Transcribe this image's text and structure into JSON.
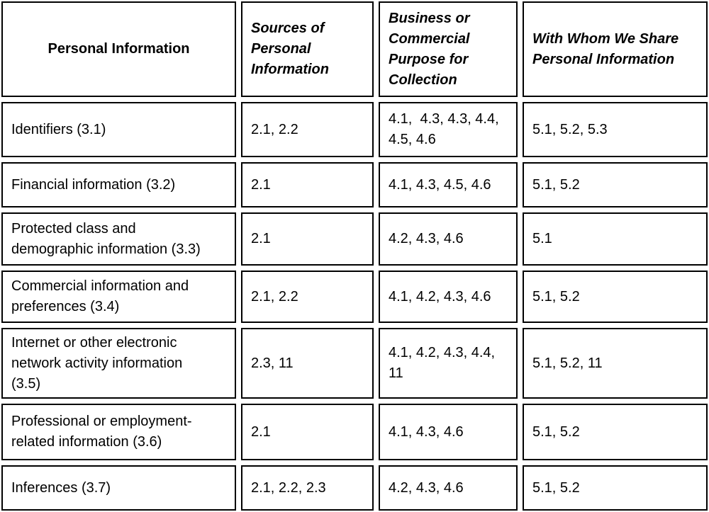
{
  "table": {
    "headers": [
      "Personal Information",
      "Sources of\nPersonal\nInformation",
      "Business or\nCommercial\nPurpose for\nCollection",
      "With Whom We Share\nPersonal Information"
    ],
    "rows": [
      {
        "category": "Identifiers (3.1)",
        "sources": "2.1, 2.2",
        "purpose": "4.1,  4.3, 4.3, 4.4,\n4.5, 4.6",
        "shared_with": "5.1, 5.2, 5.3"
      },
      {
        "category": "Financial information (3.2)",
        "sources": "2.1",
        "purpose": "4.1, 4.3, 4.5, 4.6",
        "shared_with": "5.1, 5.2"
      },
      {
        "category": "Protected class and\ndemographic information (3.3)",
        "sources": "2.1",
        "purpose": "4.2, 4.3, 4.6",
        "shared_with": "5.1"
      },
      {
        "category": "Commercial information and\npreferences (3.4)",
        "sources": "2.1, 2.2",
        "purpose": "4.1, 4.2, 4.3, 4.6",
        "shared_with": "5.1, 5.2"
      },
      {
        "category": "Internet or other electronic\nnetwork activity information\n(3.5)",
        "sources": "2.3, 11",
        "purpose": "4.1, 4.2, 4.3, 4.4,\n11",
        "shared_with": "5.1, 5.2, 11"
      },
      {
        "category": "Professional or employment-\nrelated information (3.6)",
        "sources": "2.1",
        "purpose": "4.1, 4.3, 4.6",
        "shared_with": "5.1, 5.2"
      },
      {
        "category": "Inferences (3.7)",
        "sources": "2.1, 2.2, 2.3",
        "purpose": "4.2, 4.3, 4.6",
        "shared_with": "5.1, 5.2"
      }
    ]
  }
}
